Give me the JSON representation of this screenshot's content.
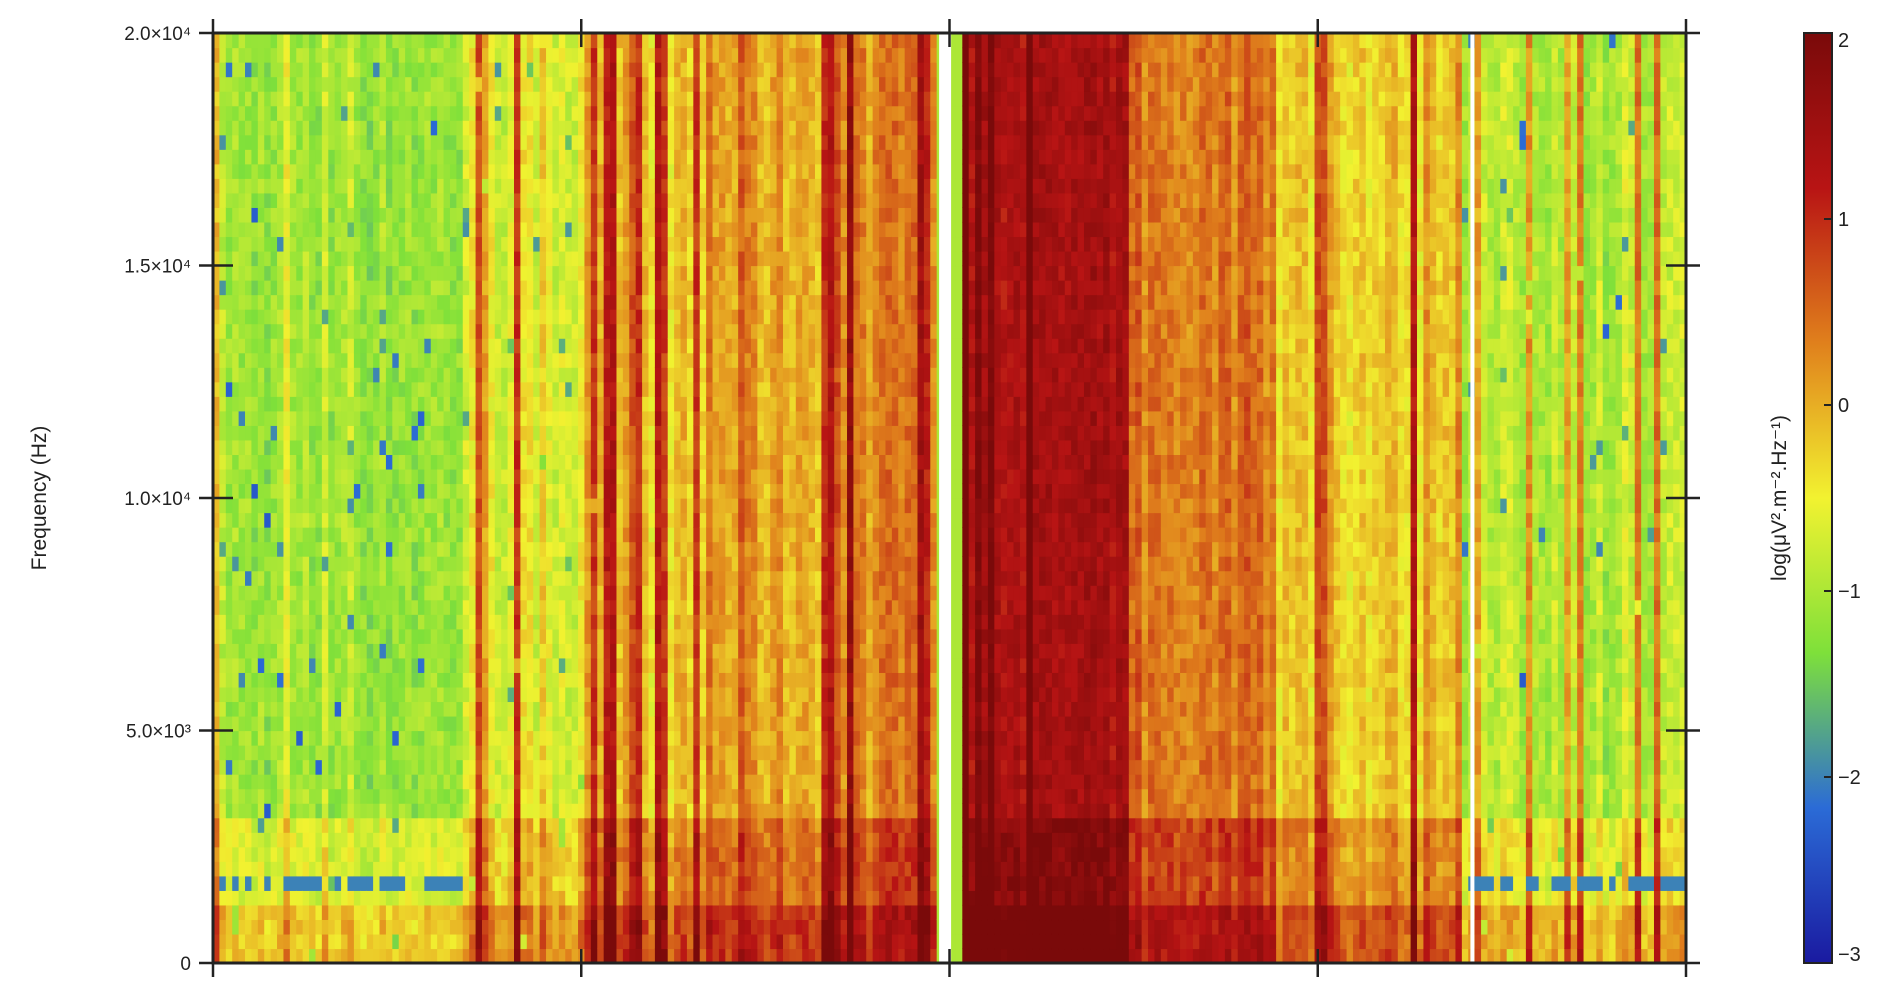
{
  "chart_data": {
    "type": "heatmap",
    "title": "",
    "xlabel": "",
    "ylabel": "Frequency (Hz)",
    "ylim": [
      0,
      20000
    ],
    "y_ticks": [
      {
        "value": 0,
        "label": "0"
      },
      {
        "value": 5000,
        "label": "5.0×10³"
      },
      {
        "value": 10000,
        "label": "1.0×10⁴"
      },
      {
        "value": 15000,
        "label": "1.5×10⁴"
      },
      {
        "value": 20000,
        "label": "2.0×10⁴"
      }
    ],
    "x_tick_count": 5,
    "x_tick_labels_visible": false,
    "grid": false,
    "colorbar": {
      "label": "log(μV².m⁻².Hz⁻¹)",
      "range": [
        -3,
        2
      ],
      "ticks": [
        {
          "value": 2,
          "label": "2"
        },
        {
          "value": 1,
          "label": "1"
        },
        {
          "value": 0,
          "label": "0"
        },
        {
          "value": -1,
          "label": "−1"
        },
        {
          "value": -2,
          "label": "−2"
        },
        {
          "value": -3,
          "label": "−3"
        }
      ],
      "colors": [
        "#1a1aa0",
        "#2b6bd6",
        "#7ee03a",
        "#f2f230",
        "#e0801c",
        "#b81414",
        "#7a0a0a"
      ]
    },
    "segments": [
      {
        "from": 0.0,
        "to": 0.17,
        "background": -1.1,
        "burst": -0.4
      },
      {
        "from": 0.17,
        "to": 0.26,
        "background": -0.6,
        "burst": 0.6
      },
      {
        "from": 0.26,
        "to": 0.34,
        "background": -0.2,
        "burst": 0.9
      },
      {
        "from": 0.34,
        "to": 0.42,
        "background": 0.1,
        "burst": 1.3
      },
      {
        "from": 0.42,
        "to": 0.49,
        "background": 0.3,
        "burst": 1.6
      },
      {
        "from": 0.51,
        "to": 0.62,
        "background": 1.4,
        "burst": 1.95
      },
      {
        "from": 0.62,
        "to": 0.72,
        "background": 0.4,
        "burst": 1.2
      },
      {
        "from": 0.72,
        "to": 0.85,
        "background": -0.2,
        "burst": 0.9
      },
      {
        "from": 0.85,
        "to": 1.0,
        "background": -0.9,
        "burst": 0.2
      }
    ],
    "data_gaps": [
      0.497,
      0.855
    ]
  }
}
